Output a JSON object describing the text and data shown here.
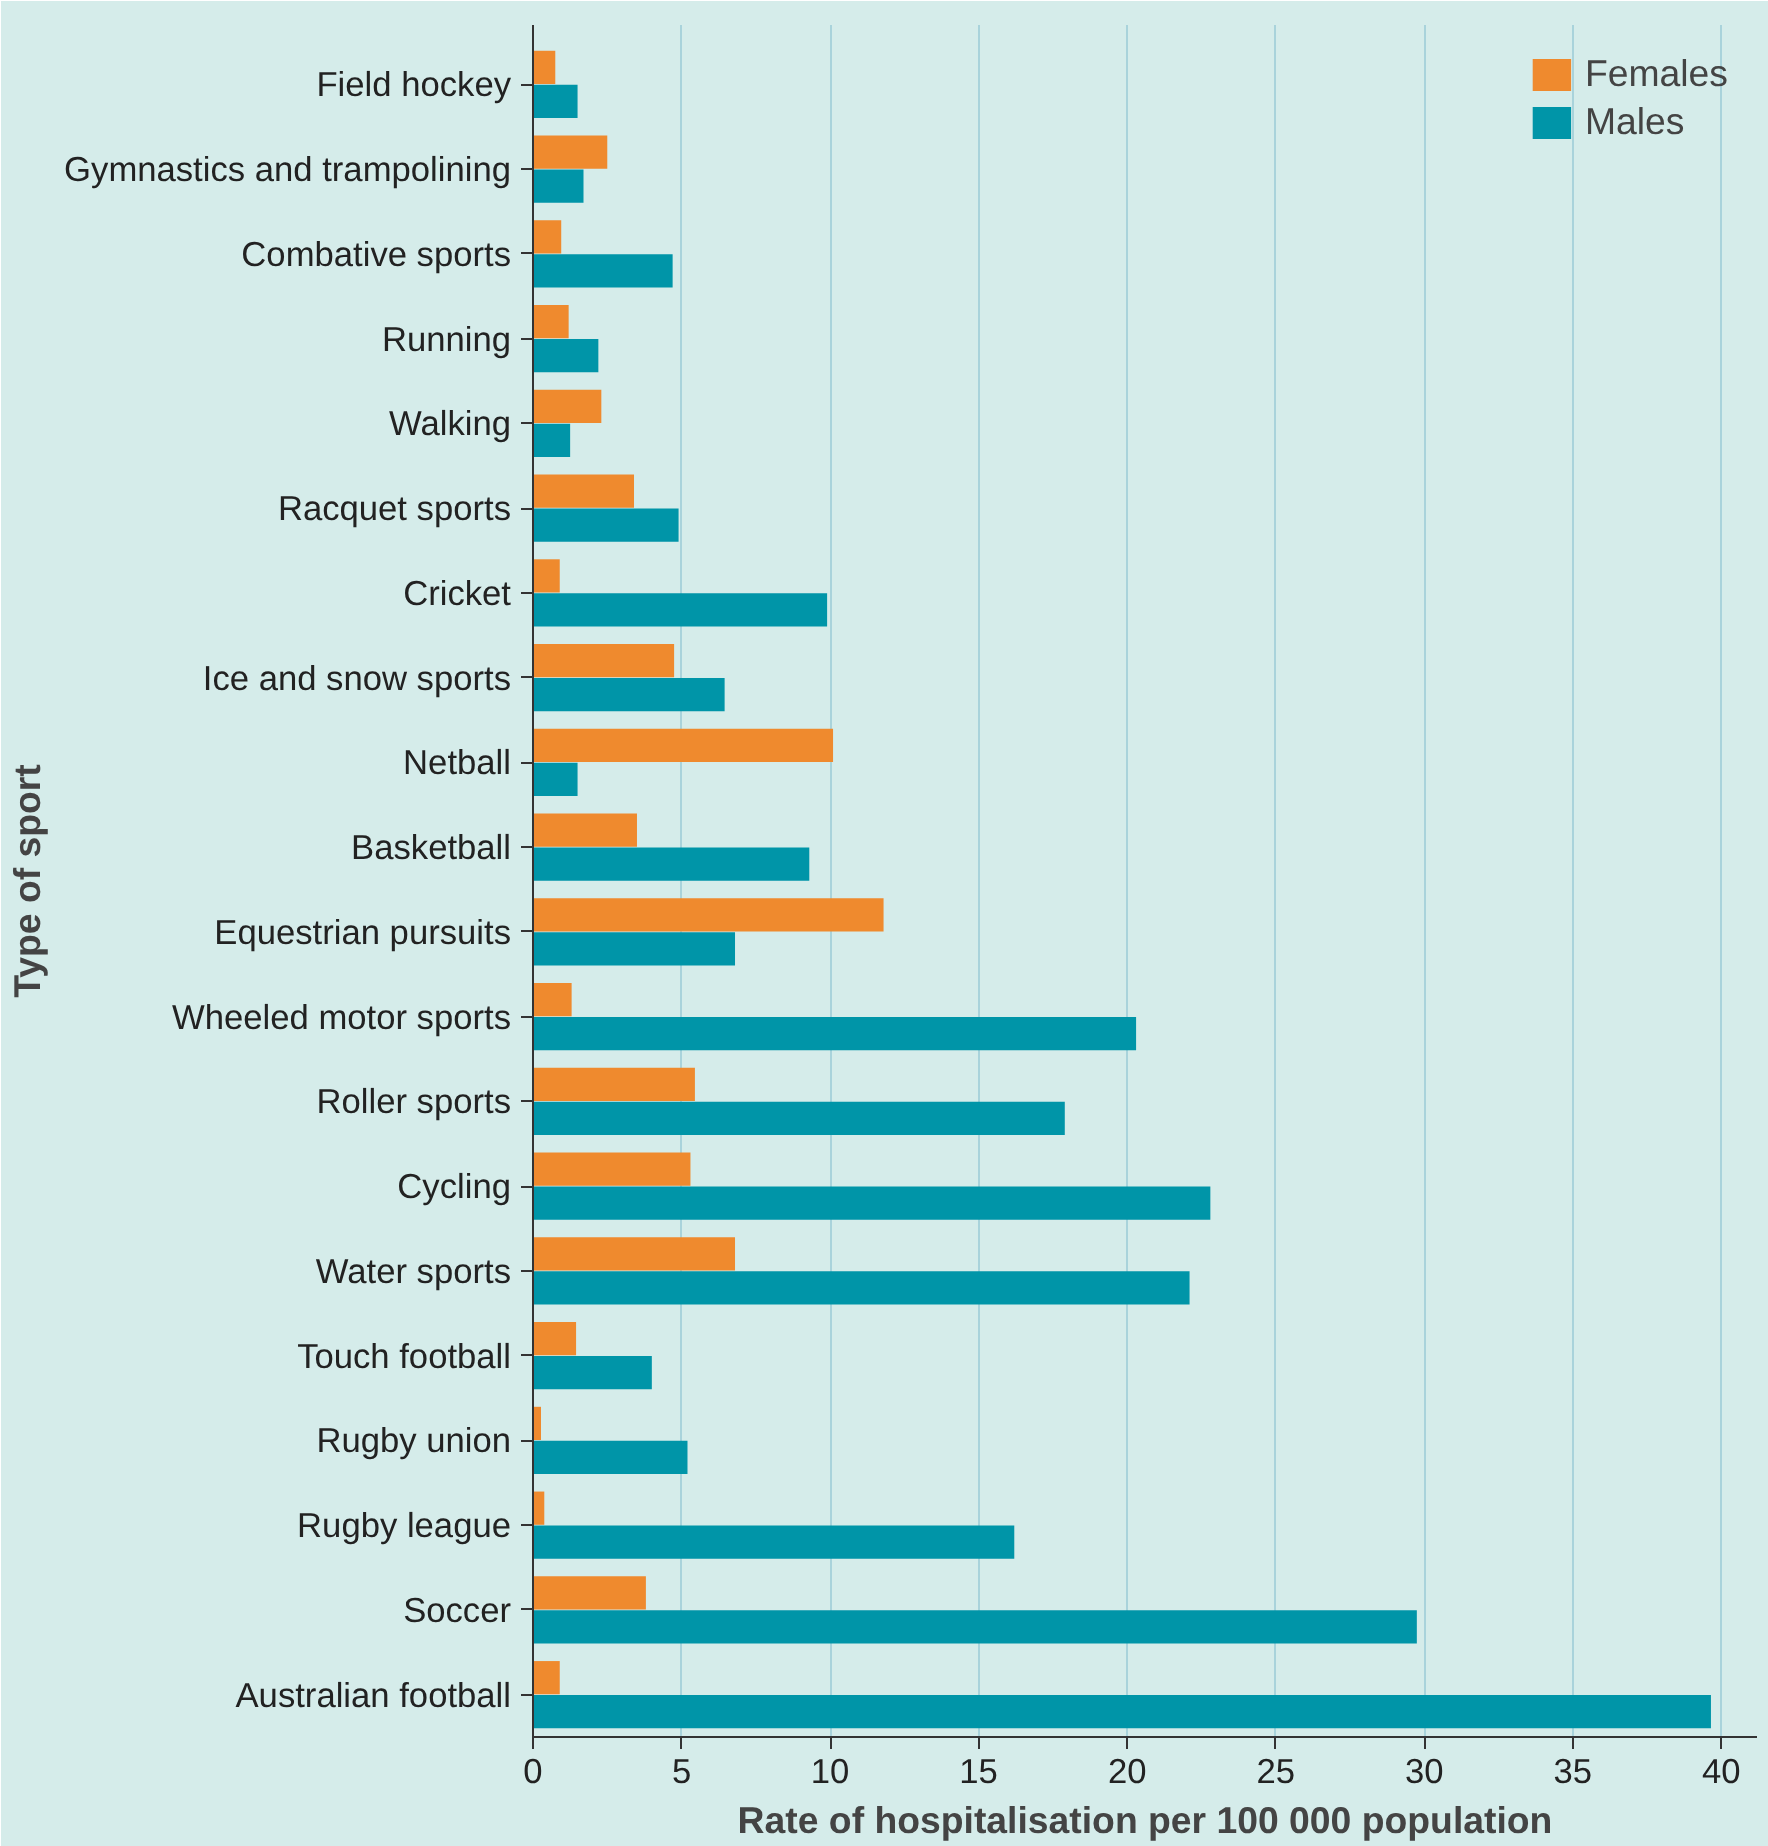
{
  "chart_data": {
    "type": "bar",
    "orientation": "horizontal",
    "xlabel": "Rate of hospitalisation per 100 000 population",
    "ylabel": "Type of sport",
    "categories": [
      "Field hockey",
      "Gymnastics and trampolining",
      "Combative sports",
      "Running",
      "Walking",
      "Racquet sports",
      "Cricket",
      "Ice and snow sports",
      "Netball",
      "Basketball",
      "Equestrian pursuits",
      "Wheeled motor sports",
      "Roller sports",
      "Cycling",
      "Water sports",
      "Touch football",
      "Rugby union",
      "Rugby league",
      "Soccer",
      "Australian football"
    ],
    "series": [
      {
        "name": "Females",
        "color": "#ef8a2e",
        "values": [
          0.75,
          2.5,
          0.95,
          1.2,
          2.3,
          3.4,
          0.9,
          4.75,
          10.1,
          3.5,
          11.8,
          1.3,
          5.45,
          5.3,
          6.8,
          1.45,
          0.27,
          0.38,
          3.8,
          0.9
        ]
      },
      {
        "name": "Males",
        "color": "#0095a8",
        "values": [
          1.5,
          1.7,
          4.7,
          2.2,
          1.25,
          4.9,
          9.9,
          6.45,
          1.5,
          9.3,
          6.8,
          20.3,
          17.9,
          22.8,
          22.1,
          4.0,
          5.2,
          16.2,
          29.75,
          39.65
        ]
      }
    ],
    "xlim": [
      0,
      41.2
    ],
    "xticks": [
      0,
      5,
      10,
      15,
      20,
      25,
      30,
      35,
      40
    ],
    "grid": "x",
    "legend": "top right"
  }
}
